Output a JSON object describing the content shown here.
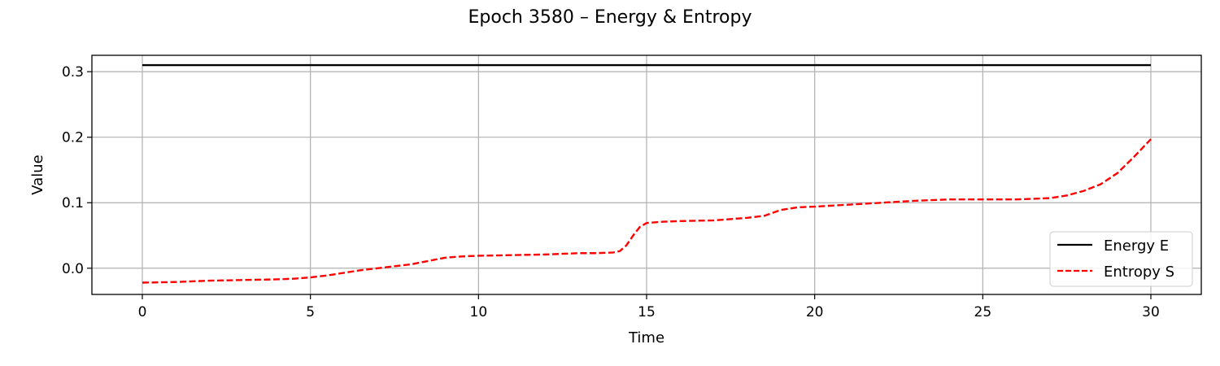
{
  "chart_data": {
    "type": "line",
    "title": "Epoch 3580 – Energy & Entropy",
    "xlabel": "Time",
    "ylabel": "Value",
    "xlim": [
      -1.5,
      31.5
    ],
    "ylim": [
      -0.04,
      0.325
    ],
    "xticks": [
      0,
      5,
      10,
      15,
      20,
      25,
      30
    ],
    "xtick_labels": [
      "0",
      "5",
      "10",
      "15",
      "20",
      "25",
      "30"
    ],
    "yticks": [
      0.0,
      0.1,
      0.2,
      0.3
    ],
    "ytick_labels": [
      "0.0",
      "0.1",
      "0.2",
      "0.3"
    ],
    "grid": true,
    "legend_position": "lower-right",
    "series": [
      {
        "name": "Energy E",
        "color": "#000000",
        "style": "solid",
        "x": [
          0,
          30
        ],
        "y": [
          0.31,
          0.31
        ]
      },
      {
        "name": "Entropy S",
        "color": "#ff0000",
        "style": "dashed",
        "x": [
          0,
          1,
          2,
          3,
          4,
          4.5,
          5,
          5.5,
          6,
          6.5,
          7,
          7.5,
          8,
          8.5,
          9,
          9.5,
          10,
          11,
          12,
          13,
          13.5,
          14,
          14.2,
          14.4,
          14.6,
          14.8,
          15,
          15.5,
          16,
          17,
          18,
          18.5,
          19,
          19.5,
          20,
          21,
          22,
          23,
          24,
          25,
          26,
          26.5,
          27,
          27.5,
          28,
          28.5,
          29,
          29.5,
          30
        ],
        "y": [
          -0.022,
          -0.021,
          -0.019,
          -0.018,
          -0.017,
          -0.016,
          -0.014,
          -0.011,
          -0.007,
          -0.003,
          0.0,
          0.003,
          0.006,
          0.011,
          0.016,
          0.018,
          0.019,
          0.02,
          0.021,
          0.023,
          0.023,
          0.024,
          0.026,
          0.035,
          0.05,
          0.063,
          0.069,
          0.071,
          0.072,
          0.073,
          0.077,
          0.08,
          0.089,
          0.093,
          0.094,
          0.097,
          0.1,
          0.103,
          0.105,
          0.105,
          0.105,
          0.106,
          0.107,
          0.111,
          0.118,
          0.128,
          0.145,
          0.17,
          0.197
        ]
      }
    ]
  }
}
